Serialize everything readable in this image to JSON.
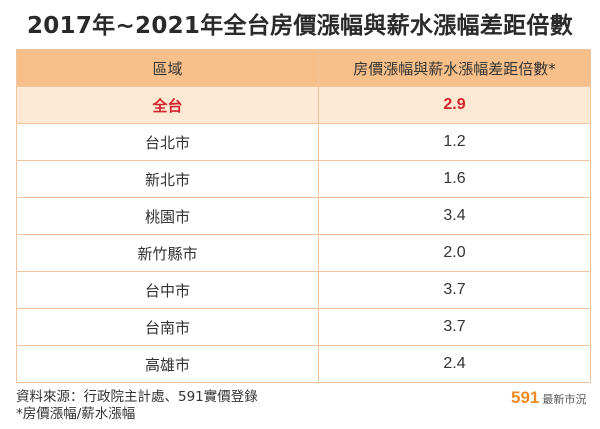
{
  "colors": {
    "header_background": "#f7c08a",
    "highlight_background": "#fde9d4",
    "highlight_text": "#d3242b",
    "text": "#333333",
    "border": "#f0c59e",
    "logo_accent": "#ef8b24"
  },
  "chart_data": {
    "type": "table",
    "title": "2017年~2021年全台房價漲幅與薪水漲幅差距倍數",
    "columns": [
      "區域",
      "房價漲幅與薪水漲幅差距倍數*"
    ],
    "rows": [
      {
        "region": "全台",
        "value": 2.9,
        "highlight": true
      },
      {
        "region": "台北市",
        "value": 1.2
      },
      {
        "region": "新北市",
        "value": 1.6
      },
      {
        "region": "桃園市",
        "value": 3.4
      },
      {
        "region": "新竹縣市",
        "value": 2.0
      },
      {
        "region": "台中市",
        "value": 3.7
      },
      {
        "region": "台南市",
        "value": 3.7
      },
      {
        "region": "高雄市",
        "value": 2.4
      }
    ]
  },
  "footer": {
    "source": "資料來源：行政院主計處、591實價登錄",
    "note": "*房價漲幅/薪水漲幅"
  },
  "logo": {
    "number": "591",
    "text": "最新市況"
  }
}
